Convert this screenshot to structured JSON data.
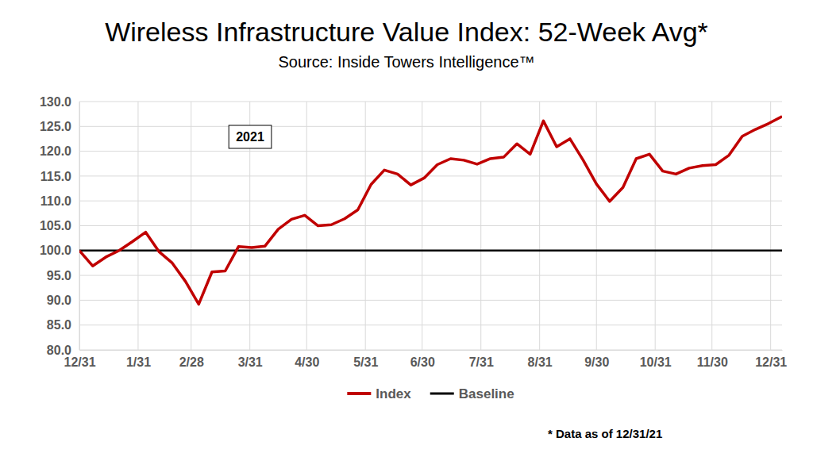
{
  "chart_data": {
    "type": "line",
    "title": "Wireless Infrastructure Value Index: 52-Week Avg*",
    "subtitle": "Source: Inside Towers Intelligence™",
    "annotation": "2021",
    "footnote": "* Data as of 12/31/21",
    "x": [
      0,
      7,
      14,
      21,
      28,
      35,
      42,
      49,
      56,
      63,
      70,
      77,
      84,
      91,
      98,
      105,
      112,
      119,
      126,
      133,
      140,
      147,
      154,
      161,
      168,
      175,
      182,
      189,
      196,
      203,
      210,
      217,
      224,
      231,
      238,
      245,
      252,
      259,
      266,
      273,
      280,
      287,
      294,
      301,
      308,
      315,
      322,
      329,
      336,
      343,
      350,
      357,
      364,
      371
    ],
    "xlim": [
      0,
      371
    ],
    "xticks": [
      {
        "value": 0,
        "label": "12/31"
      },
      {
        "value": 31,
        "label": "1/31"
      },
      {
        "value": 59,
        "label": "2/28"
      },
      {
        "value": 90,
        "label": "3/31"
      },
      {
        "value": 120,
        "label": "4/30"
      },
      {
        "value": 151,
        "label": "5/31"
      },
      {
        "value": 181,
        "label": "6/30"
      },
      {
        "value": 212,
        "label": "7/31"
      },
      {
        "value": 243,
        "label": "8/31"
      },
      {
        "value": 273,
        "label": "9/30"
      },
      {
        "value": 304,
        "label": "10/31"
      },
      {
        "value": 334,
        "label": "11/30"
      },
      {
        "value": 365,
        "label": "12/31"
      }
    ],
    "ylim": [
      80,
      130
    ],
    "yticks": [
      {
        "value": 80,
        "label": "80.0"
      },
      {
        "value": 85,
        "label": "85.0"
      },
      {
        "value": 90,
        "label": "90.0"
      },
      {
        "value": 95,
        "label": "95.0"
      },
      {
        "value": 100,
        "label": "100.0"
      },
      {
        "value": 105,
        "label": "105.0"
      },
      {
        "value": 110,
        "label": "110.0"
      },
      {
        "value": 115,
        "label": "115.0"
      },
      {
        "value": 120,
        "label": "120.0"
      },
      {
        "value": 125,
        "label": "125.0"
      },
      {
        "value": 130,
        "label": "130.0"
      }
    ],
    "grid": true,
    "legend": "bottom",
    "series": [
      {
        "name": "Index",
        "color": "#c00000",
        "values": [
          100.0,
          96.9,
          98.7,
          100.0,
          101.8,
          103.7,
          99.8,
          97.5,
          93.8,
          89.2,
          95.7,
          95.9,
          100.8,
          100.6,
          100.9,
          104.3,
          106.3,
          107.1,
          105.0,
          105.2,
          106.4,
          108.2,
          113.3,
          116.2,
          115.4,
          113.2,
          114.6,
          117.3,
          118.5,
          118.2,
          117.4,
          118.5,
          118.8,
          121.5,
          119.4,
          126.1,
          120.9,
          122.5,
          118.2,
          113.4,
          109.9,
          112.7,
          118.5,
          119.4,
          116.0,
          115.4,
          116.6,
          117.1,
          117.3,
          119.2,
          123.0,
          124.4,
          125.6,
          127.0
        ]
      },
      {
        "name": "Baseline",
        "color": "#000000",
        "values": [
          100,
          100,
          100,
          100,
          100,
          100,
          100,
          100,
          100,
          100,
          100,
          100,
          100,
          100,
          100,
          100,
          100,
          100,
          100,
          100,
          100,
          100,
          100,
          100,
          100,
          100,
          100,
          100,
          100,
          100,
          100,
          100,
          100,
          100,
          100,
          100,
          100,
          100,
          100,
          100,
          100,
          100,
          100,
          100,
          100,
          100,
          100,
          100,
          100,
          100,
          100,
          100,
          100,
          100
        ]
      }
    ]
  }
}
